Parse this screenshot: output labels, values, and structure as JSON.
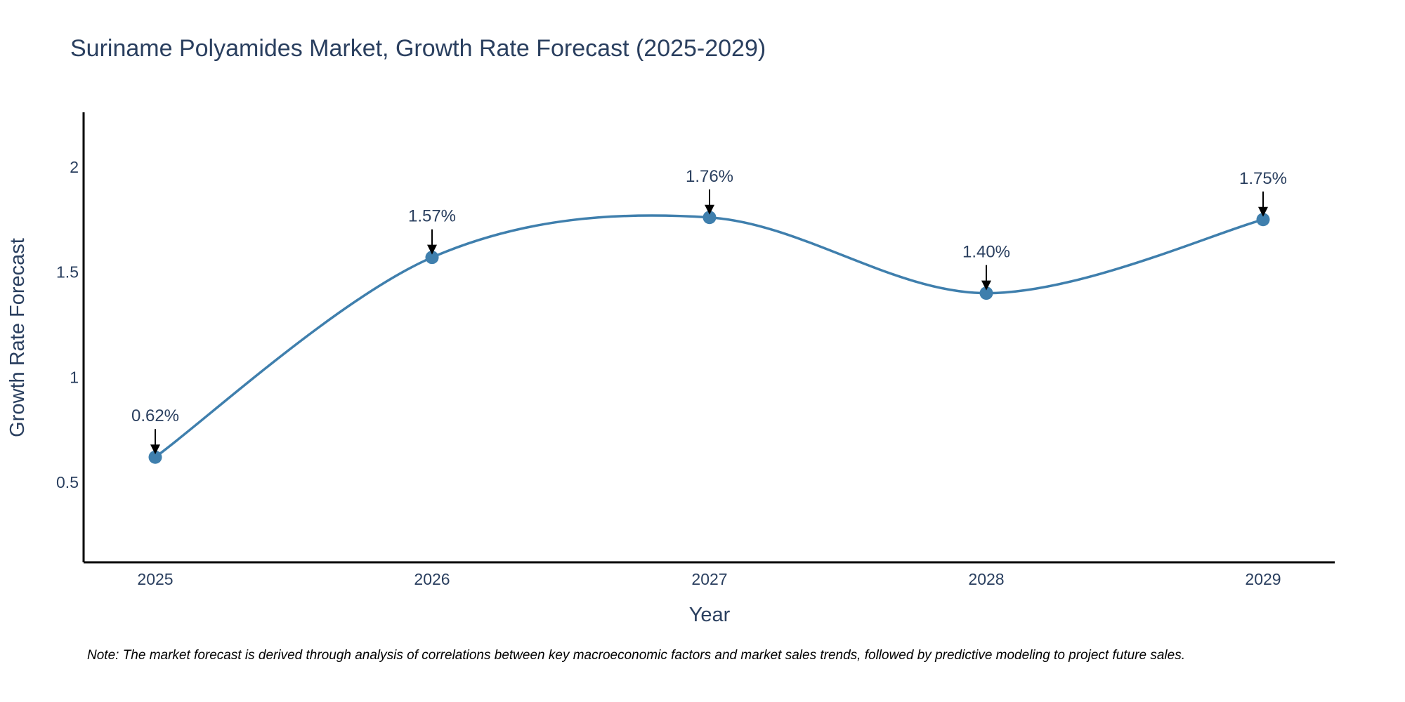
{
  "chart_data": {
    "type": "line",
    "title": "Suriname Polyamides Market, Growth Rate Forecast (2025-2029)",
    "xlabel": "Year",
    "ylabel": "Growth Rate Forecast",
    "categories": [
      "2025",
      "2026",
      "2027",
      "2028",
      "2029"
    ],
    "series": [
      {
        "name": "Growth Rate Forecast",
        "values": [
          0.62,
          1.57,
          1.76,
          1.4,
          1.75
        ],
        "labels": [
          "0.62%",
          "1.57%",
          "1.76%",
          "1.40%",
          "1.75%"
        ]
      }
    ],
    "ylim": [
      0.12,
      2.26
    ],
    "yticks": [
      0.5,
      1,
      1.5,
      2
    ],
    "ytick_labels": [
      "0.5",
      "1",
      "1.5",
      "2"
    ],
    "grid": false,
    "line_color": "#3f7fad",
    "marker_color": "#3f7fad",
    "arrow_color": "#000000",
    "axis_color": "#000000",
    "text_color": "#2a3f5f",
    "note": "Note: The market forecast is derived through analysis of correlations between key macroeconomic factors and market sales trends, followed by predictive modeling to project future sales."
  }
}
